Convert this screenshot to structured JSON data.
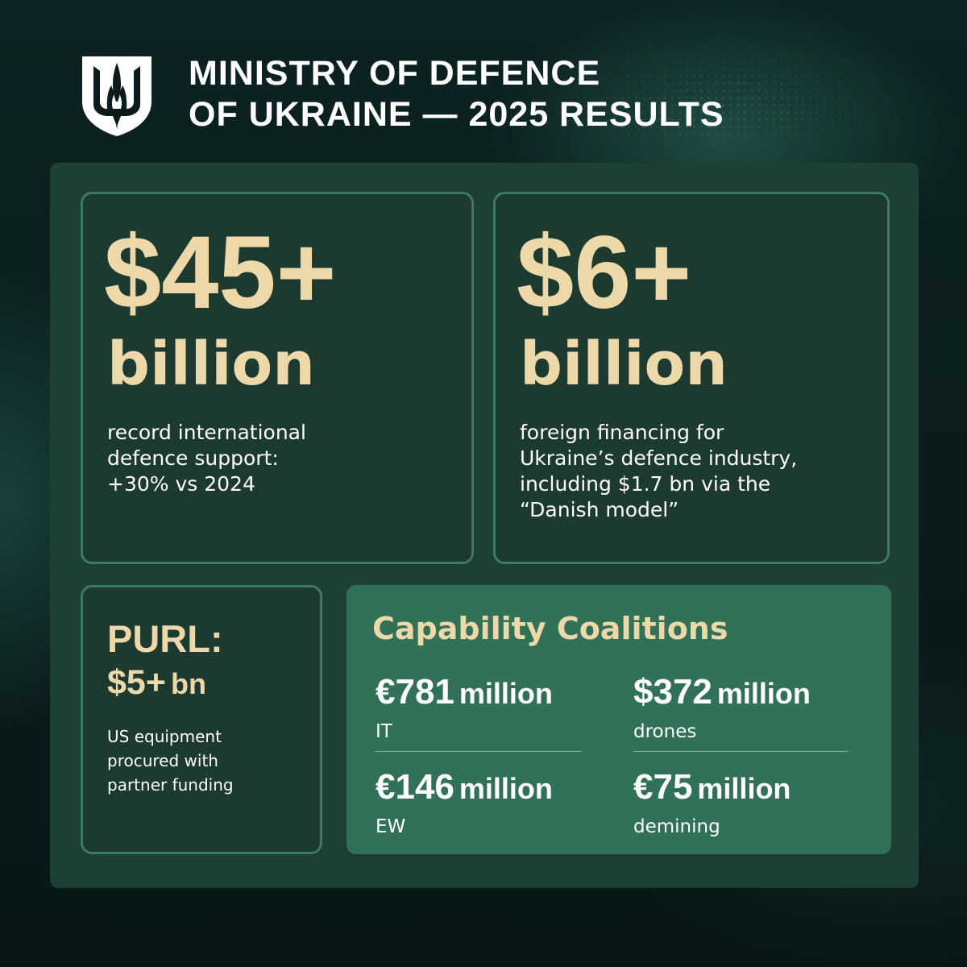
{
  "header": {
    "logo_icon": "trident-shield-icon",
    "title_line1": "MINISTRY OF DEFENCE",
    "title_line2": "OF UKRAINE — 2025 RESULTS"
  },
  "cards": {
    "support": {
      "value": "$45+",
      "unit": "billion",
      "desc_line1": "record international",
      "desc_line2": "defence support:",
      "desc_line3": "+30% vs 2024"
    },
    "financing": {
      "value": "$6+",
      "unit": "billion",
      "desc_line1": "foreign financing for",
      "desc_line2": "Ukraine’s defence industry,",
      "desc_line3": "including $1.7 bn via the",
      "desc_line4": "“Danish model”"
    },
    "purl": {
      "title": "PURL:",
      "value": "$5+",
      "unit": "bn",
      "desc_line1": "US equipment",
      "desc_line2": "procured with",
      "desc_line3": "partner funding"
    }
  },
  "coalitions": {
    "title": "Capability Coalitions",
    "items": [
      {
        "amount": "€781",
        "multiplier": "million",
        "label": "IT"
      },
      {
        "amount": "$372",
        "multiplier": "million",
        "label": "drones"
      },
      {
        "amount": "€146",
        "multiplier": "million",
        "label": "EW"
      },
      {
        "amount": "€75",
        "multiplier": "million",
        "label": "demining"
      }
    ]
  },
  "colors": {
    "accent_gold": "#ecd8a8",
    "panel_green": "#1e3f33",
    "card_border": "#3e7a62",
    "coalition_green": "#317157"
  }
}
